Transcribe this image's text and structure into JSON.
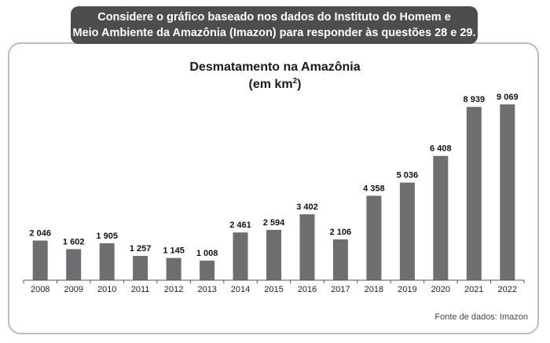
{
  "header": {
    "line1": "Considere o gráfico baseado nos dados do Instituto do Homem e",
    "line2": "Meio Ambiente da Amazônia (Imazon) para responder às questões 28 e 29."
  },
  "chart_data": {
    "type": "bar",
    "title": "Desmatamento na Amazônia",
    "subtitle_prefix": "(em km",
    "subtitle_sup": "2",
    "subtitle_suffix": ")",
    "categories": [
      "2008",
      "2009",
      "2010",
      "2011",
      "2012",
      "2013",
      "2014",
      "2015",
      "2016",
      "2017",
      "2018",
      "2019",
      "2020",
      "2021",
      "2022"
    ],
    "values": [
      2046,
      1602,
      1905,
      1257,
      1145,
      1008,
      2461,
      2594,
      3402,
      2106,
      4358,
      5036,
      6408,
      8939,
      9069
    ],
    "value_labels": [
      "2 046",
      "1 602",
      "1 905",
      "1 257",
      "1 145",
      "1 008",
      "2 461",
      "2 594",
      "3 402",
      "2 106",
      "4 358",
      "5 036",
      "6 408",
      "8 939",
      "9 069"
    ],
    "ylim": [
      0,
      9069
    ],
    "grid": false,
    "bar_color": "#6d6e70"
  },
  "source": "Fonte de dados: Imazon"
}
